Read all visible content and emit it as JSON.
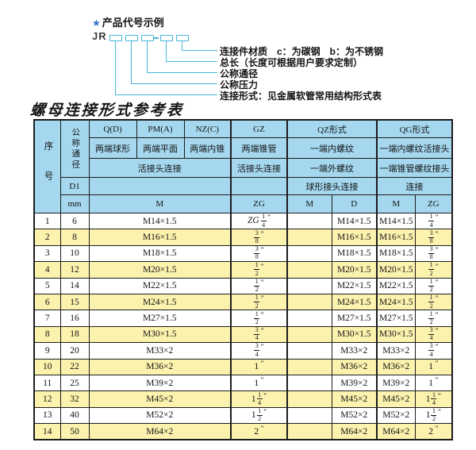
{
  "colors": {
    "header_bg": "#a5d8ef",
    "row_alt_bg": "#fbf2ae",
    "diagram_line": "#45b7dc",
    "star_blue": "#2f6fd0",
    "border": "#1c1c1c"
  },
  "diagram": {
    "star": "★",
    "heading": "产品代号示例",
    "prefix": "JR",
    "dash": "-",
    "labels": [
      "连接件材质　c：为碳钢　b：为不锈钢",
      "总长（长度可根据用户要求定制）",
      "公称通径",
      "公称压力",
      "连接形式：见金属软管常用结构形式表"
    ]
  },
  "table_title": "螺母连接形式参考表",
  "table": {
    "inch_mark": "\"",
    "header": {
      "serial": "序号",
      "nominal_diameter": "公称通径",
      "d1": "D1",
      "mm": "mm",
      "q_code": "Q(D)",
      "pm_code": "PM(A)",
      "nz_code": "NZ(C)",
      "gz_code": "GZ",
      "qz_form": "QZ形式",
      "qg_form": "QG形式",
      "q_desc": "两端球形",
      "pm_desc": "两端平面",
      "nz_desc": "两端内锥",
      "gz_desc": "两端锥管",
      "qz_desc1": "一端内螺纹",
      "qg_desc1": "一端内螺纹活接头",
      "union_conn": "活接头连接",
      "gz_conn": "活接头连接",
      "qz_desc2": "一端外螺纹",
      "qg_desc2": "一端锥管螺纹接头",
      "qz_conn": "球形接头连接",
      "qg_conn": "连接",
      "m_label": "M",
      "zg_label": "ZG",
      "qz_m": "M",
      "qz_d": "D",
      "qg_m": "M",
      "qg_zg": "ZG"
    },
    "rows": [
      {
        "no": "1",
        "dn": "6",
        "m": "M14×1.5",
        "gz": {
          "pre": "ZG",
          "num": "1",
          "den": "4"
        },
        "qz_m": "",
        "qz_d": "M14×1.5",
        "qg_m": "M14×1.5",
        "qg_zg": {
          "num": "1",
          "den": "4"
        }
      },
      {
        "no": "2",
        "dn": "8",
        "m": "M16×1.5",
        "gz": {
          "num": "3",
          "den": "8"
        },
        "qz_m": "",
        "qz_d": "M16×1.5",
        "qg_m": "M16×1.5",
        "qg_zg": {
          "num": "3",
          "den": "8"
        }
      },
      {
        "no": "3",
        "dn": "10",
        "m": "M18×1.5",
        "gz": {
          "num": "3",
          "den": "8"
        },
        "qz_m": "",
        "qz_d": "M18×1.5",
        "qg_m": "M18×1.5",
        "qg_zg": {
          "num": "3",
          "den": "8"
        }
      },
      {
        "no": "4",
        "dn": "12",
        "m": "M20×1.5",
        "gz": {
          "num": "1",
          "den": "2"
        },
        "qz_m": "",
        "qz_d": "M20×1.5",
        "qg_m": "M20×1.5",
        "qg_zg": {
          "num": "1",
          "den": "2"
        }
      },
      {
        "no": "5",
        "dn": "14",
        "m": "M22×1.5",
        "gz": {
          "num": "1",
          "den": "2"
        },
        "qz_m": "",
        "qz_d": "M22×1.5",
        "qg_m": "M22×1.5",
        "qg_zg": {
          "num": "1",
          "den": "2"
        }
      },
      {
        "no": "6",
        "dn": "15",
        "m": "M24×1.5",
        "gz": {
          "num": "1",
          "den": "2"
        },
        "qz_m": "",
        "qz_d": "M24×1.5",
        "qg_m": "M24×1.5",
        "qg_zg": {
          "num": "1",
          "den": "2"
        }
      },
      {
        "no": "7",
        "dn": "16",
        "m": "M27×1.5",
        "gz": {
          "num": "1",
          "den": "2"
        },
        "qz_m": "",
        "qz_d": "M27×1.5",
        "qg_m": "M27×1.5",
        "qg_zg": {
          "num": "1",
          "den": "2"
        }
      },
      {
        "no": "8",
        "dn": "18",
        "m": "M30×1.5",
        "gz": {
          "num": "3",
          "den": "4"
        },
        "qz_m": "",
        "qz_d": "M30×1.5",
        "qg_m": "M30×1.5",
        "qg_zg": {
          "num": "3",
          "den": "4"
        }
      },
      {
        "no": "9",
        "dn": "20",
        "m": "M33×2",
        "gz": {
          "num": "3",
          "den": "4"
        },
        "qz_m": "",
        "qz_d": "M33×2",
        "qg_m": "M33×2",
        "qg_zg": {
          "num": "3",
          "den": "4"
        }
      },
      {
        "no": "10",
        "dn": "22",
        "m": "M36×2",
        "gz": {
          "whole": "1"
        },
        "qz_m": "",
        "qz_d": "M36×2",
        "qg_m": "M36×2",
        "qg_zg": {
          "whole": "1"
        }
      },
      {
        "no": "11",
        "dn": "25",
        "m": "M39×2",
        "gz": {
          "whole": "1"
        },
        "qz_m": "",
        "qz_d": "M39×2",
        "qg_m": "M39×2",
        "qg_zg": {
          "whole": "1"
        }
      },
      {
        "no": "12",
        "dn": "32",
        "m": "M45×2",
        "gz": {
          "whole": "1",
          "num": "1",
          "den": "4"
        },
        "qz_m": "",
        "qz_d": "M45×2",
        "qg_m": "M45×2",
        "qg_zg": {
          "whole": "1",
          "num": "1",
          "den": "4"
        }
      },
      {
        "no": "13",
        "dn": "40",
        "m": "M52×2",
        "gz": {
          "whole": "1",
          "num": "1",
          "den": "2"
        },
        "qz_m": "",
        "qz_d": "M52×2",
        "qg_m": "M52×2",
        "qg_zg": {
          "whole": "1",
          "num": "1",
          "den": "2"
        }
      },
      {
        "no": "14",
        "dn": "50",
        "m": "M64×2",
        "gz": {
          "whole": "2"
        },
        "qz_m": "",
        "qz_d": "M64×2",
        "qg_m": "M64×2",
        "qg_zg": {
          "whole": "2"
        }
      }
    ]
  }
}
